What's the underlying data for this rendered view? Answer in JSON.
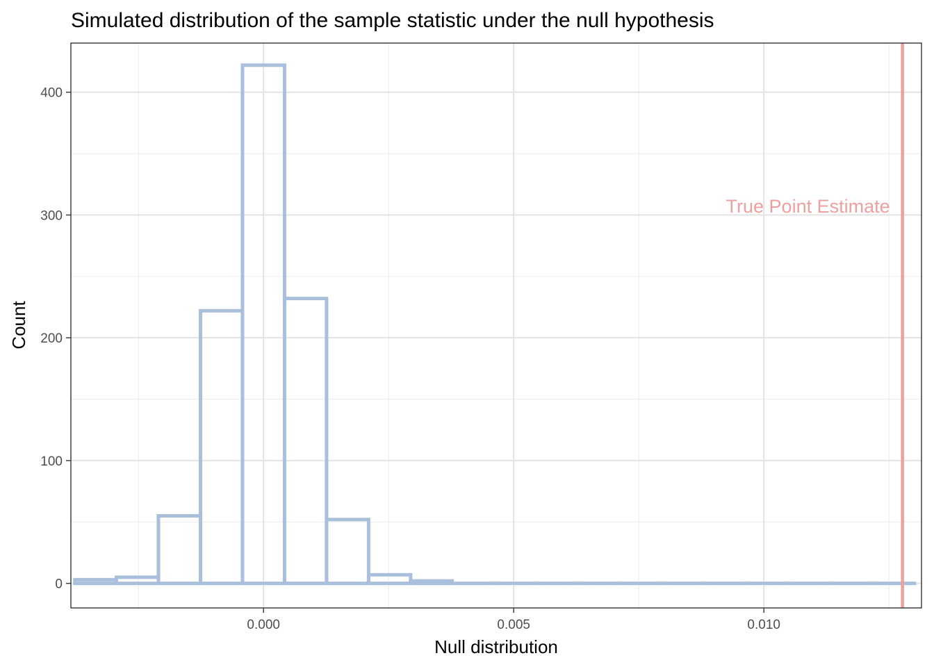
{
  "chart_data": {
    "type": "histogram",
    "title": "Simulated distribution of the sample statistic under the null hypothesis",
    "xlabel": "Null distribution",
    "ylabel": "Count",
    "xlim": [
      -0.00385,
      0.01315
    ],
    "ylim": [
      -20,
      440
    ],
    "x_ticks": [
      {
        "value": 0.0,
        "label": "0.000"
      },
      {
        "value": 0.005,
        "label": "0.005"
      },
      {
        "value": 0.01,
        "label": "0.010"
      }
    ],
    "y_ticks": [
      {
        "value": 0,
        "label": "0"
      },
      {
        "value": 100,
        "label": "100"
      },
      {
        "value": 200,
        "label": "200"
      },
      {
        "value": 300,
        "label": "300"
      },
      {
        "value": 400,
        "label": "400"
      }
    ],
    "bins": [
      {
        "x0": -0.00377,
        "x1": -0.00294,
        "count": 3
      },
      {
        "x0": -0.00294,
        "x1": -0.0021,
        "count": 5
      },
      {
        "x0": -0.0021,
        "x1": -0.00126,
        "count": 55
      },
      {
        "x0": -0.00126,
        "x1": -0.00042,
        "count": 222
      },
      {
        "x0": -0.00042,
        "x1": 0.00042,
        "count": 422
      },
      {
        "x0": 0.00042,
        "x1": 0.00126,
        "count": 232
      },
      {
        "x0": 0.00126,
        "x1": 0.0021,
        "count": 52
      },
      {
        "x0": 0.0021,
        "x1": 0.00294,
        "count": 7
      },
      {
        "x0": 0.00294,
        "x1": 0.00377,
        "count": 2
      },
      {
        "x0": 0.00377,
        "x1": 0.00461,
        "count": 0
      },
      {
        "x0": 0.00461,
        "x1": 0.00545,
        "count": 0
      },
      {
        "x0": 0.00545,
        "x1": 0.00629,
        "count": 0
      },
      {
        "x0": 0.00629,
        "x1": 0.00713,
        "count": 0
      },
      {
        "x0": 0.00713,
        "x1": 0.00797,
        "count": 0
      },
      {
        "x0": 0.00797,
        "x1": 0.00881,
        "count": 0
      },
      {
        "x0": 0.00881,
        "x1": 0.00965,
        "count": 0
      },
      {
        "x0": 0.00965,
        "x1": 0.01049,
        "count": 0
      },
      {
        "x0": 0.01049,
        "x1": 0.01133,
        "count": 0
      },
      {
        "x0": 0.01133,
        "x1": 0.01217,
        "count": 0
      },
      {
        "x0": 0.01217,
        "x1": 0.01301,
        "count": 0
      }
    ],
    "reference_line": {
      "x": 0.01277,
      "label": "True Point Estimate",
      "color": "#ee9f9f"
    },
    "bar_outline_color": "#aabfdb",
    "grid": true
  }
}
